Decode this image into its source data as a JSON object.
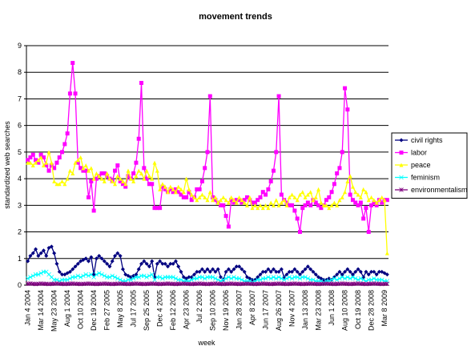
{
  "chart_data": {
    "type": "line",
    "title": "movement trends",
    "x_label": "week",
    "y_label": "standardized web searches",
    "categories": [
      "Jan 4 2004",
      null,
      null,
      null,
      null,
      "Mar 14 2004",
      null,
      null,
      null,
      null,
      "May 23 2004",
      null,
      null,
      null,
      null,
      "Aug 1 2004",
      null,
      null,
      null,
      null,
      "Oct 10 2004",
      null,
      null,
      null,
      null,
      "Dec 19 2004",
      null,
      null,
      null,
      null,
      "Feb 27 2005",
      null,
      null,
      null,
      null,
      "May 8 2005",
      null,
      null,
      null,
      null,
      "Jul 17 2005",
      null,
      null,
      null,
      null,
      "Sep 25 2005",
      null,
      null,
      null,
      null,
      "Dec 4 2005",
      null,
      null,
      null,
      null,
      "Feb 12 2006",
      null,
      null,
      null,
      null,
      "Apr 23 2006",
      null,
      null,
      null,
      null,
      "Jul 2 2006",
      null,
      null,
      null,
      null,
      "Sep 10 2006",
      null,
      null,
      null,
      null,
      "Nov 19 2006",
      null,
      null,
      null,
      null,
      "Jan 28 2007",
      null,
      null,
      null,
      null,
      "Apr 8 2007",
      null,
      null,
      null,
      null,
      "Jun 17 2007",
      null,
      null,
      null,
      null,
      "Aug 26 2007",
      null,
      null,
      null,
      null,
      "Nov 4 2007",
      null,
      null,
      null,
      null,
      "Jan 13 2008",
      null,
      null,
      null,
      null,
      "Mar 23 2008",
      null,
      null,
      null,
      null,
      "Jun 1 2008",
      null,
      null,
      null,
      null,
      "Aug 10 2008",
      null,
      null,
      null,
      null,
      "Oct 19 2008",
      null,
      null,
      null,
      null,
      "Dec 28 2008",
      null,
      null,
      null,
      null,
      "Mar 8 2009",
      null
    ],
    "series": [
      {
        "name": "civil rights",
        "color": "#000080",
        "marker": "diamond",
        "values": [
          0.9,
          1.1,
          1.2,
          1.35,
          1.1,
          1.2,
          1.3,
          1.1,
          1.4,
          1.45,
          1.2,
          0.8,
          0.5,
          0.4,
          0.4,
          0.45,
          0.5,
          0.6,
          0.7,
          0.8,
          0.9,
          0.95,
          1.0,
          0.9,
          1.05,
          0.4,
          1.0,
          1.1,
          1.0,
          0.9,
          0.8,
          0.7,
          0.9,
          1.1,
          1.2,
          1.1,
          0.6,
          0.4,
          0.35,
          0.3,
          0.35,
          0.4,
          0.6,
          0.8,
          0.9,
          0.8,
          0.7,
          0.9,
          0.3,
          0.8,
          0.9,
          0.8,
          0.8,
          0.7,
          0.8,
          0.8,
          0.9,
          0.7,
          0.5,
          0.3,
          0.25,
          0.3,
          0.3,
          0.4,
          0.5,
          0.5,
          0.6,
          0.5,
          0.6,
          0.5,
          0.6,
          0.5,
          0.6,
          0.3,
          0.2,
          0.5,
          0.6,
          0.5,
          0.6,
          0.7,
          0.7,
          0.6,
          0.5,
          0.3,
          0.25,
          0.2,
          0.2,
          0.3,
          0.4,
          0.5,
          0.5,
          0.6,
          0.5,
          0.6,
          0.5,
          0.5,
          0.6,
          0.3,
          0.4,
          0.5,
          0.5,
          0.6,
          0.5,
          0.4,
          0.5,
          0.6,
          0.7,
          0.6,
          0.5,
          0.4,
          0.3,
          0.25,
          0.2,
          0.2,
          0.25,
          0.2,
          0.3,
          0.4,
          0.5,
          0.4,
          0.5,
          0.6,
          0.5,
          0.4,
          0.5,
          0.6,
          0.5,
          0.3,
          0.5,
          0.4,
          0.5,
          0.5,
          0.4,
          0.5,
          0.5,
          0.45,
          0.4
        ]
      },
      {
        "name": "labor",
        "color": "#FF00FF",
        "marker": "square",
        "values": [
          4.7,
          4.8,
          4.9,
          4.7,
          4.6,
          4.9,
          4.8,
          4.5,
          4.3,
          4.5,
          4.4,
          4.6,
          4.8,
          5.0,
          5.3,
          5.7,
          7.2,
          8.35,
          7.2,
          4.6,
          4.4,
          4.3,
          4.3,
          3.3,
          3.9,
          2.8,
          4.0,
          4.1,
          4.2,
          4.2,
          4.1,
          4.0,
          3.9,
          4.3,
          4.5,
          3.9,
          3.8,
          3.7,
          4.1,
          4.0,
          4.2,
          4.6,
          5.5,
          7.6,
          4.4,
          4.0,
          3.8,
          3.8,
          2.9,
          2.9,
          2.9,
          3.7,
          3.6,
          3.5,
          3.6,
          3.5,
          3.6,
          3.5,
          3.4,
          3.3,
          3.3,
          3.5,
          3.2,
          3.3,
          3.6,
          3.6,
          3.9,
          4.4,
          5.0,
          7.1,
          3.3,
          3.2,
          3.1,
          3.0,
          3.0,
          2.6,
          2.2,
          3.2,
          3.1,
          3.2,
          3.2,
          3.1,
          3.2,
          3.3,
          3.2,
          3.1,
          3.1,
          3.2,
          3.3,
          3.5,
          3.4,
          3.6,
          3.9,
          4.3,
          5.0,
          7.1,
          3.4,
          3.2,
          3.1,
          3.0,
          3.0,
          2.8,
          2.5,
          2.0,
          2.9,
          3.0,
          3.1,
          3.0,
          3.2,
          3.1,
          3.0,
          2.9,
          3.0,
          3.2,
          3.3,
          3.5,
          3.8,
          4.2,
          4.4,
          5.0,
          7.4,
          6.6,
          3.4,
          3.2,
          3.1,
          3.0,
          3.1,
          2.5,
          2.9,
          2.0,
          3.0,
          3.1,
          3.0,
          3.2,
          3.1,
          3.2,
          3.2
        ]
      },
      {
        "name": "peace",
        "color": "#FFFF00",
        "marker": "triangle",
        "values": [
          4.6,
          4.6,
          4.5,
          4.6,
          4.7,
          4.8,
          4.5,
          4.6,
          5.0,
          4.6,
          3.9,
          3.8,
          3.8,
          3.9,
          3.8,
          4.0,
          4.3,
          4.2,
          4.6,
          4.7,
          4.8,
          4.4,
          4.5,
          4.3,
          4.4,
          4.0,
          4.2,
          4.1,
          4.0,
          3.9,
          4.2,
          4.0,
          3.9,
          3.8,
          4.1,
          4.0,
          3.9,
          3.8,
          4.3,
          4.0,
          3.9,
          4.1,
          4.3,
          4.2,
          4.0,
          4.3,
          4.1,
          4.0,
          4.6,
          4.3,
          3.6,
          3.8,
          3.7,
          3.5,
          3.7,
          3.6,
          3.5,
          3.7,
          3.6,
          3.5,
          4.0,
          3.6,
          3.4,
          3.3,
          3.2,
          3.3,
          3.4,
          3.3,
          3.2,
          3.5,
          3.2,
          3.3,
          3.1,
          3.2,
          3.3,
          3.2,
          3.1,
          3.3,
          3.2,
          3.1,
          3.3,
          3.2,
          3.1,
          3.0,
          3.3,
          2.9,
          3.0,
          2.9,
          3.0,
          2.9,
          3.0,
          2.9,
          3.1,
          3.0,
          3.2,
          3.0,
          3.1,
          3.2,
          3.0,
          3.3,
          3.4,
          3.3,
          3.2,
          3.4,
          3.5,
          3.3,
          3.4,
          3.5,
          3.2,
          3.3,
          3.6,
          3.1,
          3.0,
          3.0,
          2.9,
          3.0,
          3.1,
          3.0,
          3.2,
          3.3,
          3.5,
          3.9,
          4.1,
          3.7,
          3.5,
          3.4,
          3.3,
          3.6,
          3.5,
          3.2,
          3.3,
          3.2,
          3.1,
          3.2,
          3.3,
          3.2,
          1.2
        ]
      },
      {
        "name": "feminism",
        "color": "#00FFFF",
        "marker": "x",
        "values": [
          0.25,
          0.3,
          0.35,
          0.4,
          0.4,
          0.45,
          0.5,
          0.5,
          0.4,
          0.3,
          0.2,
          0.2,
          0.15,
          0.2,
          0.2,
          0.2,
          0.25,
          0.3,
          0.3,
          0.35,
          0.3,
          0.35,
          0.4,
          0.35,
          0.4,
          0.3,
          0.4,
          0.45,
          0.4,
          0.35,
          0.3,
          0.3,
          0.35,
          0.3,
          0.25,
          0.2,
          0.15,
          0.15,
          0.2,
          0.2,
          0.25,
          0.3,
          0.3,
          0.35,
          0.35,
          0.3,
          0.35,
          0.4,
          0.2,
          0.3,
          0.3,
          0.25,
          0.3,
          0.3,
          0.3,
          0.3,
          0.25,
          0.2,
          0.2,
          0.15,
          0.15,
          0.15,
          0.2,
          0.25,
          0.25,
          0.3,
          0.3,
          0.25,
          0.3,
          0.3,
          0.3,
          0.25,
          0.2,
          0.15,
          0.2,
          0.25,
          0.3,
          0.25,
          0.3,
          0.25,
          0.25,
          0.2,
          0.15,
          0.15,
          0.15,
          0.1,
          0.15,
          0.2,
          0.2,
          0.25,
          0.25,
          0.3,
          0.25,
          0.3,
          0.25,
          0.3,
          0.25,
          0.2,
          0.25,
          0.3,
          0.25,
          0.3,
          0.3,
          0.25,
          0.3,
          0.3,
          0.25,
          0.2,
          0.2,
          0.15,
          0.15,
          0.15,
          0.1,
          0.15,
          0.15,
          0.2,
          0.25,
          0.2,
          0.25,
          0.3,
          0.25,
          0.3,
          0.25,
          0.3,
          0.25,
          0.2,
          0.25,
          0.2,
          0.15,
          0.2,
          0.2,
          0.25,
          0.2,
          0.2,
          0.2,
          0.15,
          0.15
        ]
      },
      {
        "name": "environmentalism",
        "color": "#800080",
        "marker": "star",
        "values": [
          0.05,
          0.06,
          0.05,
          0.04,
          0.05,
          0.06,
          0.05,
          0.05,
          0.04,
          0.05,
          0.05,
          0.06,
          0.05,
          0.05,
          0.04,
          0.05,
          0.05,
          0.06,
          0.05,
          0.05,
          0.04,
          0.05,
          0.05,
          0.06,
          0.05,
          0.05,
          0.04,
          0.05,
          0.05,
          0.06,
          0.05,
          0.05,
          0.04,
          0.05,
          0.05,
          0.06,
          0.05,
          0.05,
          0.04,
          0.05,
          0.05,
          0.06,
          0.05,
          0.05,
          0.04,
          0.05,
          0.05,
          0.06,
          0.05,
          0.05,
          0.04,
          0.05,
          0.05,
          0.06,
          0.05,
          0.05,
          0.04,
          0.05,
          0.05,
          0.06,
          0.05,
          0.05,
          0.04,
          0.05,
          0.05,
          0.06,
          0.05,
          0.05,
          0.04,
          0.05,
          0.05,
          0.06,
          0.05,
          0.05,
          0.04,
          0.05,
          0.05,
          0.06,
          0.05,
          0.05,
          0.04,
          0.05,
          0.05,
          0.06,
          0.05,
          0.05,
          0.04,
          0.05,
          0.05,
          0.06,
          0.05,
          0.05,
          0.04,
          0.05,
          0.05,
          0.06,
          0.05,
          0.05,
          0.04,
          0.05,
          0.05,
          0.06,
          0.05,
          0.05,
          0.04,
          0.05,
          0.05,
          0.06,
          0.05,
          0.05,
          0.04,
          0.05,
          0.05,
          0.06,
          0.05,
          0.05,
          0.04,
          0.05,
          0.05,
          0.06,
          0.05,
          0.05,
          0.04,
          0.05,
          0.05,
          0.06,
          0.05,
          0.05,
          0.04,
          0.05,
          0.05,
          0.06,
          0.05,
          0.05,
          0.04,
          0.05,
          0.05
        ]
      }
    ],
    "ylim": [
      0,
      9
    ],
    "yticks": [
      0,
      1,
      2,
      3,
      4,
      5,
      6,
      7,
      8,
      9
    ],
    "grid": true,
    "legend": "right"
  }
}
